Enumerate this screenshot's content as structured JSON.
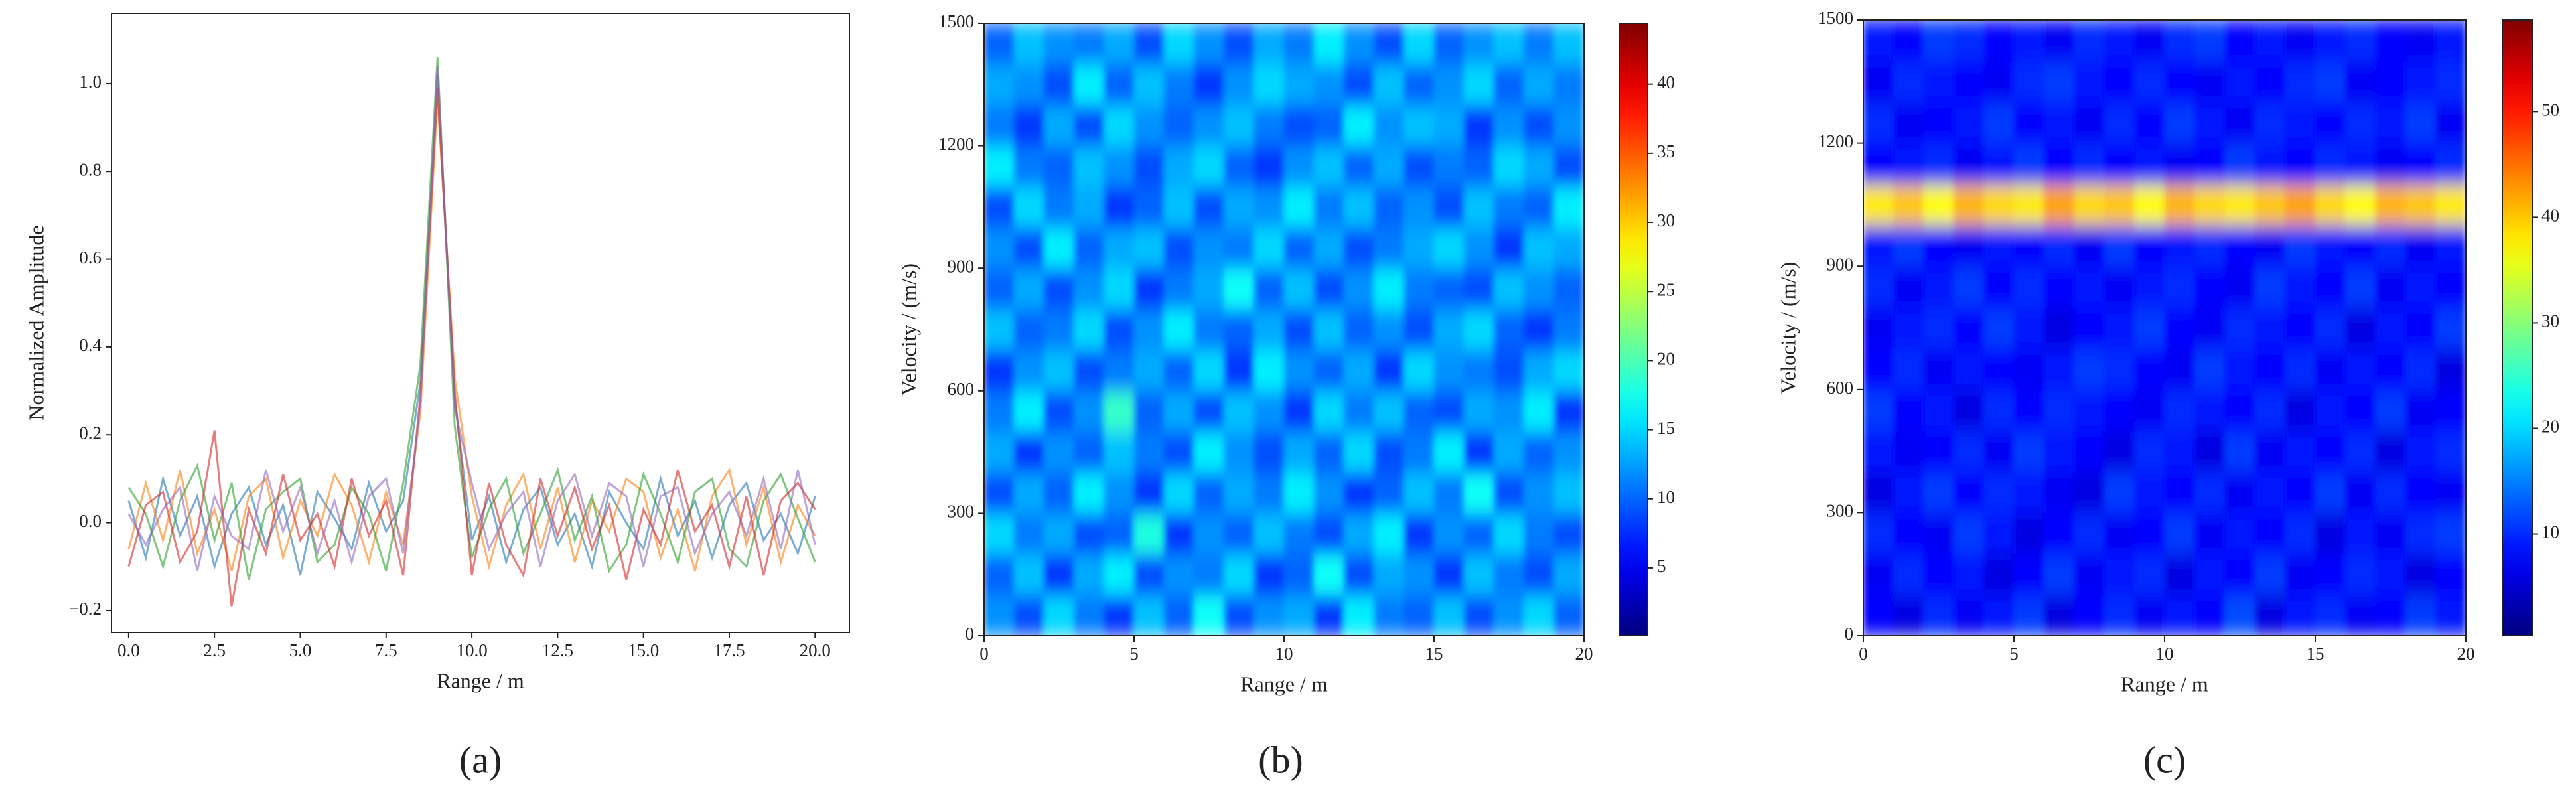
{
  "chart_data": [
    {
      "type": "line",
      "xlabel": "Range / m",
      "ylabel": "Normalized Amplitude",
      "panel_label": "(a)",
      "x": [
        0,
        0.5,
        1,
        1.5,
        2,
        2.5,
        3,
        3.5,
        4,
        4.5,
        5,
        5.5,
        6,
        6.5,
        7,
        7.5,
        8,
        8.5,
        9,
        9.5,
        10,
        10.5,
        11,
        11.5,
        12,
        12.5,
        13,
        13.5,
        14,
        14.5,
        15,
        15.5,
        16,
        16.5,
        17,
        17.5,
        18,
        18.5,
        19,
        19.5,
        20
      ],
      "series": [
        {
          "color": "#1f77b4",
          "values": [
            0.05,
            -0.08,
            0.1,
            -0.03,
            0.06,
            -0.1,
            0.02,
            0.08,
            -0.05,
            0.04,
            -0.12,
            0.07,
            0.01,
            -0.06,
            0.09,
            -0.02,
            0.05,
            0.32,
            1.02,
            0.28,
            -0.04,
            0.06,
            -0.09,
            0.03,
            0.08,
            -0.05,
            0.02,
            -0.1,
            0.07,
            0.0,
            -0.06,
            0.1,
            -0.03,
            0.05,
            -0.08,
            0.04,
            0.09,
            -0.04,
            0.02,
            -0.07,
            0.06
          ]
        },
        {
          "color": "#ff7f0e",
          "values": [
            -0.06,
            0.09,
            -0.04,
            0.12,
            -0.07,
            0.03,
            -0.11,
            0.06,
            0.1,
            -0.08,
            0.05,
            -0.03,
            0.11,
            0.04,
            -0.09,
            0.07,
            -0.05,
            0.25,
            0.97,
            0.33,
            0.06,
            -0.1,
            0.04,
            0.11,
            -0.06,
            0.08,
            -0.09,
            0.05,
            -0.02,
            0.1,
            0.07,
            -0.08,
            0.03,
            -0.11,
            0.06,
            0.12,
            -0.05,
            0.08,
            -0.09,
            0.04,
            -0.03
          ]
        },
        {
          "color": "#2ca02c",
          "values": [
            0.08,
            0.02,
            -0.1,
            0.05,
            0.13,
            -0.04,
            0.09,
            -0.13,
            0.03,
            0.07,
            0.1,
            -0.09,
            -0.05,
            0.08,
            0.02,
            -0.11,
            0.09,
            0.36,
            1.06,
            0.22,
            -0.08,
            0.03,
            0.1,
            -0.07,
            0.02,
            0.12,
            -0.04,
            0.06,
            -0.11,
            -0.05,
            0.11,
            0.02,
            -0.09,
            0.07,
            0.1,
            -0.06,
            -0.1,
            0.05,
            0.11,
            0.01,
            -0.09
          ]
        },
        {
          "color": "#d62728",
          "values": [
            -0.1,
            0.04,
            0.07,
            -0.09,
            -0.02,
            0.21,
            -0.19,
            0.03,
            -0.07,
            0.11,
            -0.04,
            0.02,
            -0.1,
            0.1,
            -0.03,
            0.05,
            -0.12,
            0.29,
            0.99,
            0.3,
            -0.12,
            0.09,
            -0.05,
            -0.12,
            0.1,
            -0.03,
            0.08,
            -0.06,
            0.04,
            -0.13,
            0.03,
            -0.05,
            0.12,
            -0.02,
            0.04,
            -0.1,
            0.06,
            -0.12,
            0.05,
            0.09,
            0.03
          ]
        },
        {
          "color": "#9467bd",
          "values": [
            0.02,
            -0.05,
            0.03,
            0.08,
            -0.11,
            0.06,
            -0.03,
            -0.06,
            0.12,
            -0.02,
            0.08,
            -0.07,
            0.05,
            -0.09,
            0.06,
            0.1,
            -0.07,
            0.27,
            1.04,
            0.26,
            0.09,
            -0.06,
            0.02,
            0.07,
            -0.1,
            0.05,
            0.11,
            -0.03,
            0.09,
            0.06,
            -0.1,
            0.06,
            0.08,
            -0.07,
            0.02,
            0.07,
            -0.03,
            0.1,
            -0.06,
            0.12,
            -0.05
          ]
        }
      ],
      "xlim": [
        -0.5,
        21
      ],
      "xticks": [
        {
          "value": 0,
          "label": "0.0"
        },
        {
          "value": 2.5,
          "label": "2.5"
        },
        {
          "value": 5,
          "label": "5.0"
        },
        {
          "value": 7.5,
          "label": "7.5"
        },
        {
          "value": 10,
          "label": "10.0"
        },
        {
          "value": 12.5,
          "label": "12.5"
        },
        {
          "value": 15,
          "label": "15.0"
        },
        {
          "value": 17.5,
          "label": "17.5"
        },
        {
          "value": 20,
          "label": "20.0"
        }
      ],
      "ylim": [
        -0.25,
        1.16
      ],
      "yticks": [
        {
          "value": -0.2,
          "label": "−0.2"
        },
        {
          "value": 0,
          "label": "0.0"
        },
        {
          "value": 0.2,
          "label": "0.2"
        },
        {
          "value": 0.4,
          "label": "0.4"
        },
        {
          "value": 0.6,
          "label": "0.6"
        },
        {
          "value": 0.8,
          "label": "0.8"
        },
        {
          "value": 1,
          "label": "1.0"
        }
      ]
    },
    {
      "type": "heatmap",
      "xlabel": "Range / m",
      "ylabel": "Velocity / (m/s)",
      "panel_label": "(b)",
      "colormap": "jet",
      "xlim": [
        0,
        20
      ],
      "xticks": [
        0,
        5,
        10,
        15,
        20
      ],
      "ylim": [
        0,
        1500
      ],
      "yticks": [
        0,
        300,
        600,
        900,
        1200,
        1500
      ],
      "zlim": [
        0.1,
        44.4
      ],
      "zticks": [
        5,
        10,
        15,
        20,
        25,
        30,
        35,
        40
      ],
      "z": [
        [
          12,
          9,
          15,
          11,
          8,
          14,
          10,
          17,
          9,
          12,
          13,
          8,
          16,
          11,
          10,
          14,
          9,
          12,
          15,
          10
        ],
        [
          10,
          14,
          8,
          13,
          16,
          9,
          12,
          11,
          15,
          8,
          10,
          17,
          9,
          13,
          12,
          8,
          14,
          11,
          9,
          13
        ],
        [
          15,
          11,
          13,
          9,
          10,
          18,
          8,
          12,
          10,
          14,
          11,
          9,
          13,
          16,
          8,
          12,
          10,
          15,
          11,
          9
        ],
        [
          9,
          13,
          10,
          16,
          12,
          8,
          15,
          10,
          13,
          11,
          16,
          12,
          8,
          10,
          14,
          11,
          17,
          9,
          12,
          14
        ],
        [
          13,
          8,
          12,
          10,
          14,
          11,
          9,
          16,
          12,
          9,
          13,
          10,
          15,
          9,
          11,
          16,
          8,
          13,
          10,
          12
        ],
        [
          11,
          16,
          9,
          12,
          19,
          10,
          13,
          9,
          14,
          12,
          8,
          15,
          11,
          14,
          10,
          9,
          13,
          12,
          16,
          8
        ],
        [
          8,
          12,
          14,
          9,
          11,
          13,
          10,
          15,
          8,
          16,
          12,
          10,
          13,
          8,
          15,
          12,
          11,
          9,
          13,
          15
        ],
        [
          14,
          10,
          11,
          15,
          9,
          12,
          16,
          11,
          10,
          13,
          9,
          14,
          10,
          12,
          9,
          13,
          15,
          10,
          8,
          11
        ],
        [
          10,
          13,
          9,
          12,
          15,
          8,
          11,
          13,
          17,
          10,
          14,
          9,
          12,
          16,
          11,
          10,
          9,
          14,
          12,
          10
        ],
        [
          12,
          9,
          16,
          10,
          13,
          14,
          9,
          12,
          11,
          15,
          10,
          13,
          9,
          11,
          13,
          15,
          12,
          8,
          14,
          13
        ],
        [
          9,
          15,
          11,
          13,
          8,
          10,
          14,
          9,
          13,
          12,
          16,
          11,
          14,
          10,
          12,
          9,
          14,
          11,
          10,
          16
        ],
        [
          16,
          11,
          10,
          14,
          12,
          9,
          13,
          15,
          10,
          8,
          12,
          14,
          10,
          13,
          9,
          11,
          10,
          15,
          13,
          9
        ],
        [
          11,
          8,
          13,
          9,
          15,
          12,
          10,
          12,
          14,
          11,
          9,
          10,
          16,
          12,
          14,
          13,
          8,
          12,
          9,
          12
        ],
        [
          13,
          12,
          9,
          16,
          10,
          14,
          11,
          8,
          12,
          15,
          13,
          12,
          9,
          14,
          10,
          12,
          15,
          10,
          13,
          11
        ],
        [
          10,
          14,
          12,
          11,
          13,
          9,
          15,
          12,
          9,
          13,
          11,
          16,
          12,
          9,
          15,
          10,
          12,
          14,
          11,
          14
        ]
      ]
    },
    {
      "type": "heatmap",
      "xlabel": "Range / m",
      "ylabel": "Velocity / (m/s)",
      "panel_label": "(c)",
      "colormap": "jet",
      "xlim": [
        0,
        20
      ],
      "xticks": [
        0,
        5,
        10,
        15,
        20
      ],
      "ylim": [
        0,
        1500
      ],
      "yticks": [
        0,
        300,
        600,
        900,
        1200,
        1500
      ],
      "zlim": [
        0.35,
        58.7
      ],
      "zticks": [
        10,
        20,
        30,
        40,
        50
      ],
      "z": [
        [
          8,
          6,
          10,
          7,
          9,
          11,
          6,
          8,
          10,
          7,
          9,
          8,
          12,
          6,
          9,
          10,
          7,
          8,
          11,
          9
        ],
        [
          7,
          10,
          8,
          9,
          6,
          8,
          11,
          7,
          9,
          10,
          6,
          9,
          8,
          11,
          7,
          8,
          10,
          9,
          6,
          8
        ],
        [
          10,
          8,
          7,
          11,
          9,
          6,
          8,
          10,
          7,
          8,
          11,
          7,
          9,
          8,
          10,
          6,
          9,
          7,
          10,
          11
        ],
        [
          6,
          9,
          11,
          8,
          10,
          9,
          7,
          6,
          11,
          9,
          8,
          10,
          7,
          9,
          8,
          11,
          7,
          10,
          8,
          7
        ],
        [
          9,
          7,
          8,
          10,
          7,
          11,
          9,
          8,
          6,
          10,
          9,
          6,
          11,
          7,
          9,
          8,
          10,
          6,
          9,
          10
        ],
        [
          11,
          8,
          9,
          6,
          10,
          8,
          10,
          9,
          8,
          7,
          10,
          9,
          8,
          10,
          6,
          9,
          8,
          11,
          7,
          8
        ],
        [
          8,
          10,
          7,
          9,
          8,
          7,
          9,
          11,
          10,
          8,
          7,
          11,
          9,
          8,
          10,
          7,
          9,
          8,
          10,
          6
        ],
        [
          7,
          9,
          10,
          8,
          11,
          9,
          6,
          8,
          9,
          11,
          8,
          7,
          10,
          9,
          8,
          10,
          6,
          9,
          8,
          11
        ],
        [
          10,
          7,
          9,
          11,
          8,
          10,
          8,
          9,
          7,
          9,
          10,
          8,
          7,
          11,
          9,
          8,
          11,
          7,
          9,
          8
        ],
        [
          9,
          11,
          8,
          7,
          9,
          8,
          10,
          7,
          11,
          8,
          9,
          10,
          8,
          7,
          11,
          9,
          8,
          10,
          7,
          9
        ],
        [
          38,
          40,
          37,
          41,
          39,
          38,
          42,
          39,
          40,
          37,
          41,
          39,
          38,
          40,
          42,
          39,
          37,
          41,
          40,
          38
        ],
        [
          8,
          9,
          10,
          7,
          9,
          11,
          8,
          10,
          8,
          9,
          7,
          8,
          11,
          9,
          8,
          10,
          9,
          7,
          8,
          10
        ],
        [
          10,
          7,
          8,
          9,
          11,
          8,
          9,
          7,
          10,
          8,
          11,
          9,
          7,
          10,
          9,
          8,
          10,
          9,
          11,
          7
        ],
        [
          7,
          10,
          9,
          8,
          7,
          10,
          11,
          9,
          8,
          10,
          8,
          7,
          9,
          8,
          10,
          11,
          7,
          8,
          9,
          10
        ],
        [
          9,
          8,
          11,
          10,
          8,
          9,
          7,
          10,
          9,
          7,
          10,
          11,
          8,
          9,
          7,
          9,
          10,
          8,
          7,
          9
        ]
      ]
    }
  ]
}
